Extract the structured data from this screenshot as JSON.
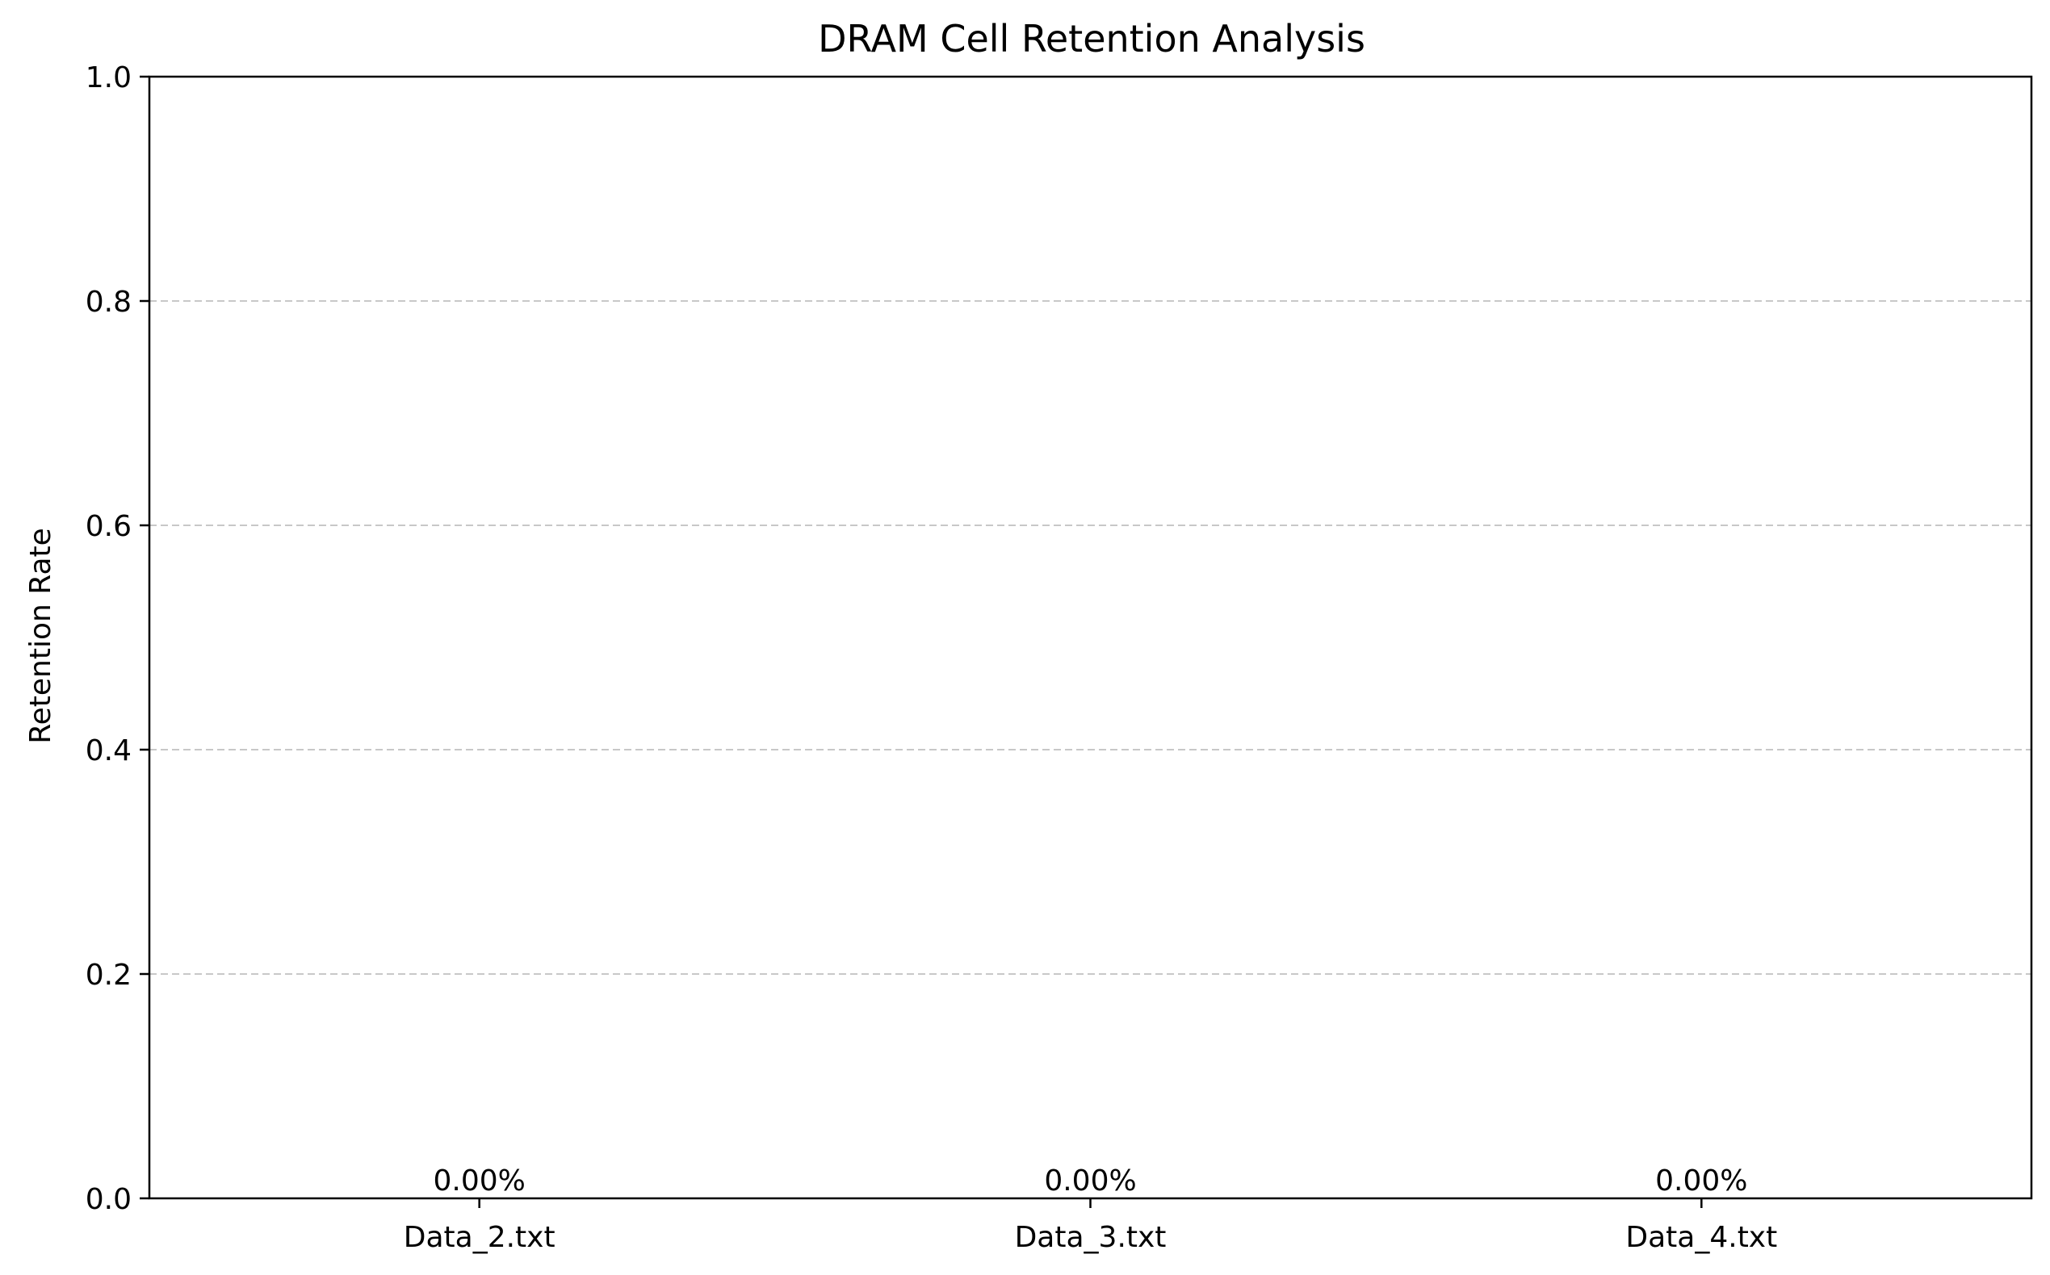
{
  "chart_data": {
    "type": "bar",
    "title": "DRAM Cell Retention Analysis",
    "xlabel": "",
    "ylabel": "Retention Rate",
    "categories": [
      "Data_2.txt",
      "Data_3.txt",
      "Data_4.txt"
    ],
    "values": [
      0,
      0,
      0
    ],
    "data_labels": [
      "0.00%",
      "0.00%",
      "0.00%"
    ],
    "ylim": [
      0,
      1.0
    ],
    "yticks": [
      "0.0",
      "0.2",
      "0.4",
      "0.6",
      "0.8",
      "1.0"
    ],
    "grid": "y-dashed",
    "bar_color": "#1f77b4"
  }
}
